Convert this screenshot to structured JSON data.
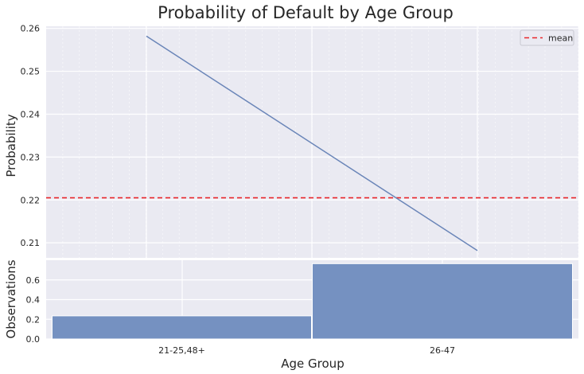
{
  "chart_data": {
    "title": "Probability of Default by Age Group",
    "xlabel": "Age Group",
    "categories": [
      "21-25,48+",
      "26-47"
    ],
    "top": {
      "type": "line",
      "ylabel": "Probability",
      "values": [
        0.2582,
        0.2082
      ],
      "mean": 0.2205,
      "mean_label": "mean",
      "ylim": [
        0.2065,
        0.2605
      ],
      "yticks": [
        0.21,
        0.22,
        0.23,
        0.24,
        0.25,
        0.26
      ],
      "line_color": "#6a85b8",
      "mean_color": "#e8272b",
      "legend_position": "top-right",
      "grid": true
    },
    "bottom": {
      "type": "bar",
      "ylabel": "Observations",
      "values": [
        0.235,
        0.765
      ],
      "ylim": [
        0,
        0.8
      ],
      "yticks": [
        0.0,
        0.2,
        0.4,
        0.6
      ],
      "bar_color": "#7591c1",
      "grid": true
    }
  }
}
